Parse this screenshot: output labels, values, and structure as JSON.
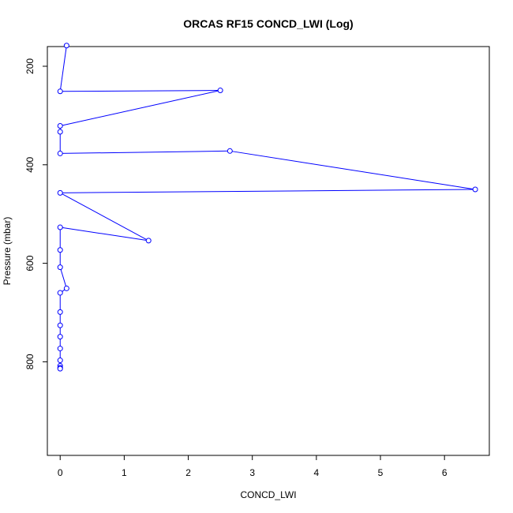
{
  "chart_data": {
    "type": "line",
    "title": "ORCAS RF15 CONCD_LWI (Log)",
    "xlabel": "CONCD_LWI",
    "ylabel": "Pressure (mbar)",
    "xlim": [
      -0.2,
      6.7
    ],
    "ylim": [
      160,
      990
    ],
    "y_reversed": true,
    "grid": false,
    "x_ticks": [
      0,
      1,
      2,
      3,
      4,
      5,
      6
    ],
    "y_ticks": [
      200,
      400,
      600,
      800
    ],
    "series": [
      {
        "color": "#0000ff",
        "marker": "open-circle",
        "points": [
          {
            "x": 0.1,
            "y": 158
          },
          {
            "x": 0.0,
            "y": 251
          },
          {
            "x": 2.5,
            "y": 249
          },
          {
            "x": 0.0,
            "y": 321
          },
          {
            "x": 0.0,
            "y": 333
          },
          {
            "x": 2.65,
            "y": 372
          },
          {
            "x": 0.0,
            "y": 377
          },
          {
            "x": 6.48,
            "y": 450
          },
          {
            "x": 0.0,
            "y": 457
          },
          {
            "x": 1.38,
            "y": 554
          },
          {
            "x": 0.0,
            "y": 527
          },
          {
            "x": 0.0,
            "y": 573
          },
          {
            "x": 0.0,
            "y": 608
          },
          {
            "x": 0.1,
            "y": 651
          },
          {
            "x": 0.0,
            "y": 660
          },
          {
            "x": 0.0,
            "y": 699
          },
          {
            "x": 0.0,
            "y": 726
          },
          {
            "x": 0.0,
            "y": 749
          },
          {
            "x": 0.0,
            "y": 773
          },
          {
            "x": 0.0,
            "y": 797
          },
          {
            "x": 0.0,
            "y": 808
          },
          {
            "x": 0.0,
            "y": 812
          },
          {
            "x": 0.0,
            "y": 814
          }
        ],
        "line_order": [
          0,
          1,
          2,
          3,
          4,
          6,
          5,
          7,
          8,
          9,
          10,
          11,
          12,
          13,
          14,
          15,
          16,
          17,
          18,
          19,
          20,
          21,
          22
        ]
      }
    ]
  }
}
